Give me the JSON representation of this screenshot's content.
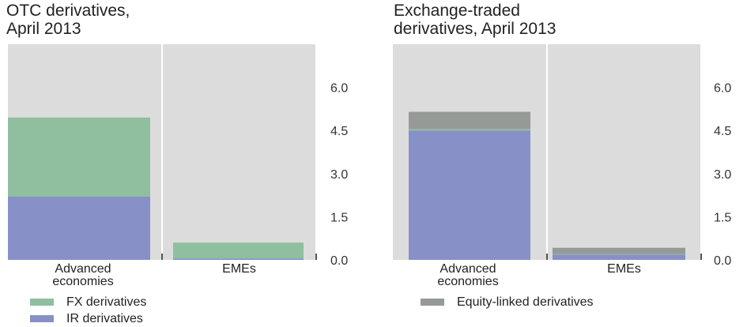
{
  "chart_data": [
    {
      "type": "bar",
      "stacked": true,
      "title": "OTC derivatives,\nApril 2013",
      "categories": [
        "Advanced\neconomies",
        "EMEs"
      ],
      "series": [
        {
          "name": "IR derivatives",
          "color": "#8890c8",
          "values": [
            2.2,
            0.05
          ]
        },
        {
          "name": "FX derivatives",
          "color": "#8fbf9f",
          "values": [
            2.75,
            0.55
          ]
        }
      ],
      "yticks": [
        "0.0",
        "1.5",
        "3.0",
        "4.5",
        "6.0"
      ],
      "ylim": [
        0,
        7.5
      ],
      "y_axis_position": "right",
      "legend": "bottom-left"
    },
    {
      "type": "bar",
      "stacked": true,
      "title": "Exchange-traded\nderivatives, April 2013",
      "categories": [
        "Advanced\neconomies",
        "EMEs"
      ],
      "series": [
        {
          "name": "",
          "color": "#8890c8",
          "values": [
            4.5,
            0.18
          ]
        },
        {
          "name": "",
          "color": "#8fbf9f",
          "values": [
            0.05,
            0.02
          ]
        },
        {
          "name": "Equity-linked derivatives",
          "color": "#969a96",
          "values": [
            0.6,
            0.22
          ]
        }
      ],
      "yticks": [
        "0.0",
        "1.5",
        "3.0",
        "4.5",
        "6.0"
      ],
      "ylim": [
        0,
        7.5
      ],
      "y_axis_position": "right",
      "legend": "bottom"
    }
  ]
}
